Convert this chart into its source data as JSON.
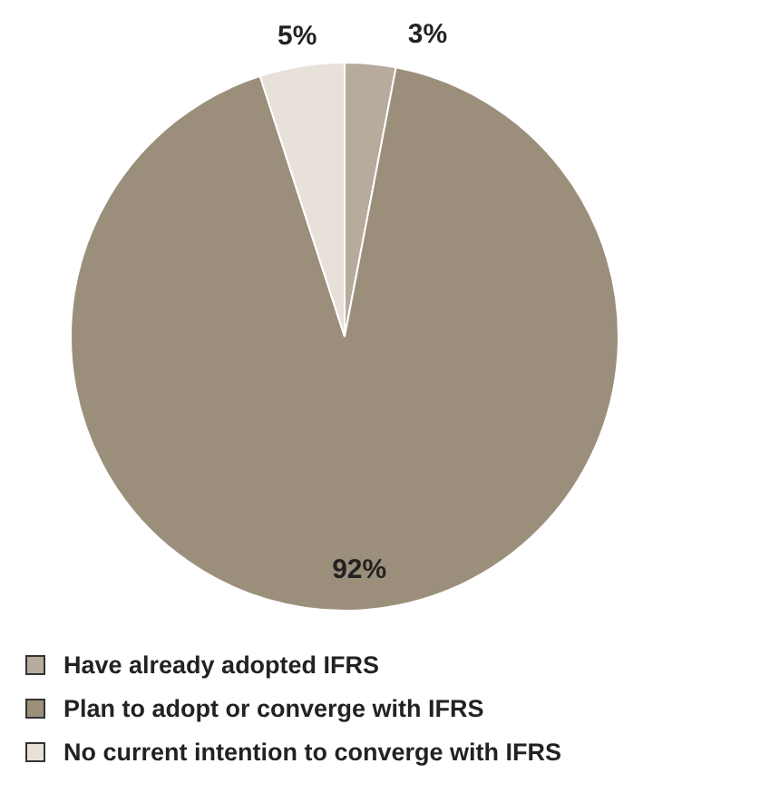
{
  "chart_data": {
    "type": "pie",
    "categories": [
      "Have already adopted IFRS",
      "Plan to adopt or converge with IFRS",
      "No current intention to converge with IFRS"
    ],
    "values": [
      3,
      92,
      5
    ],
    "value_labels": [
      "3%",
      "92%",
      "5%"
    ],
    "colors": [
      "#b6ab9c",
      "#9b8f7c",
      "#e7e1da"
    ],
    "legend": "bottom"
  }
}
